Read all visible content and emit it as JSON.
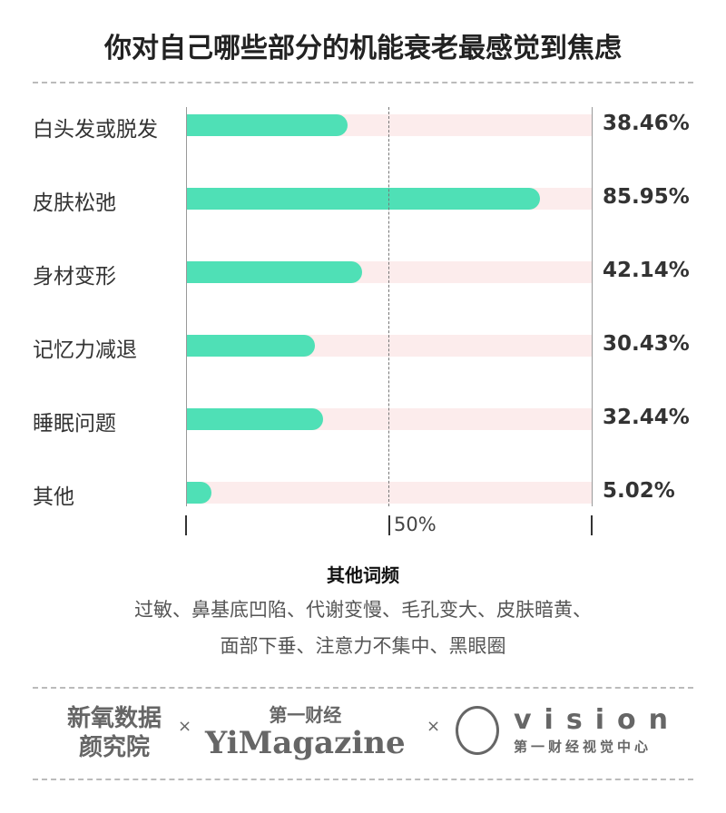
{
  "chart_data": {
    "type": "bar",
    "orientation": "horizontal",
    "title": "你对自己哪些部分的机能衰老最感觉到焦虑",
    "categories": [
      "白头发或脱发",
      "皮肤松弛",
      "身材变形",
      "记忆力减退",
      "睡眠问题",
      "其他"
    ],
    "values": [
      38.46,
      85.95,
      42.14,
      30.43,
      32.44,
      5.02
    ],
    "value_labels": [
      "38.46%",
      "85.95%",
      "42.14%",
      "30.43%",
      "32.44%",
      "5.02%"
    ],
    "xlim": [
      0,
      100
    ],
    "tick_label": "50%",
    "colors": {
      "bar": "#4fe0b6",
      "track": "#fcecec"
    }
  },
  "notes": {
    "title": "其他词频",
    "line1": "过敏、鼻基底凹陷、代谢变慢、毛孔变大、皮肤暗黄、",
    "line2": "面部下垂、注意力不集中、黑眼圈"
  },
  "logos": {
    "logo1_line1": "新氧数据",
    "logo1_line2": "颜究院",
    "sep": "×",
    "logo2_top": "第一财经",
    "logo2_main": "YiMagazine",
    "logo3_main": "vision",
    "logo3_sub": "第一财经视觉中心"
  }
}
